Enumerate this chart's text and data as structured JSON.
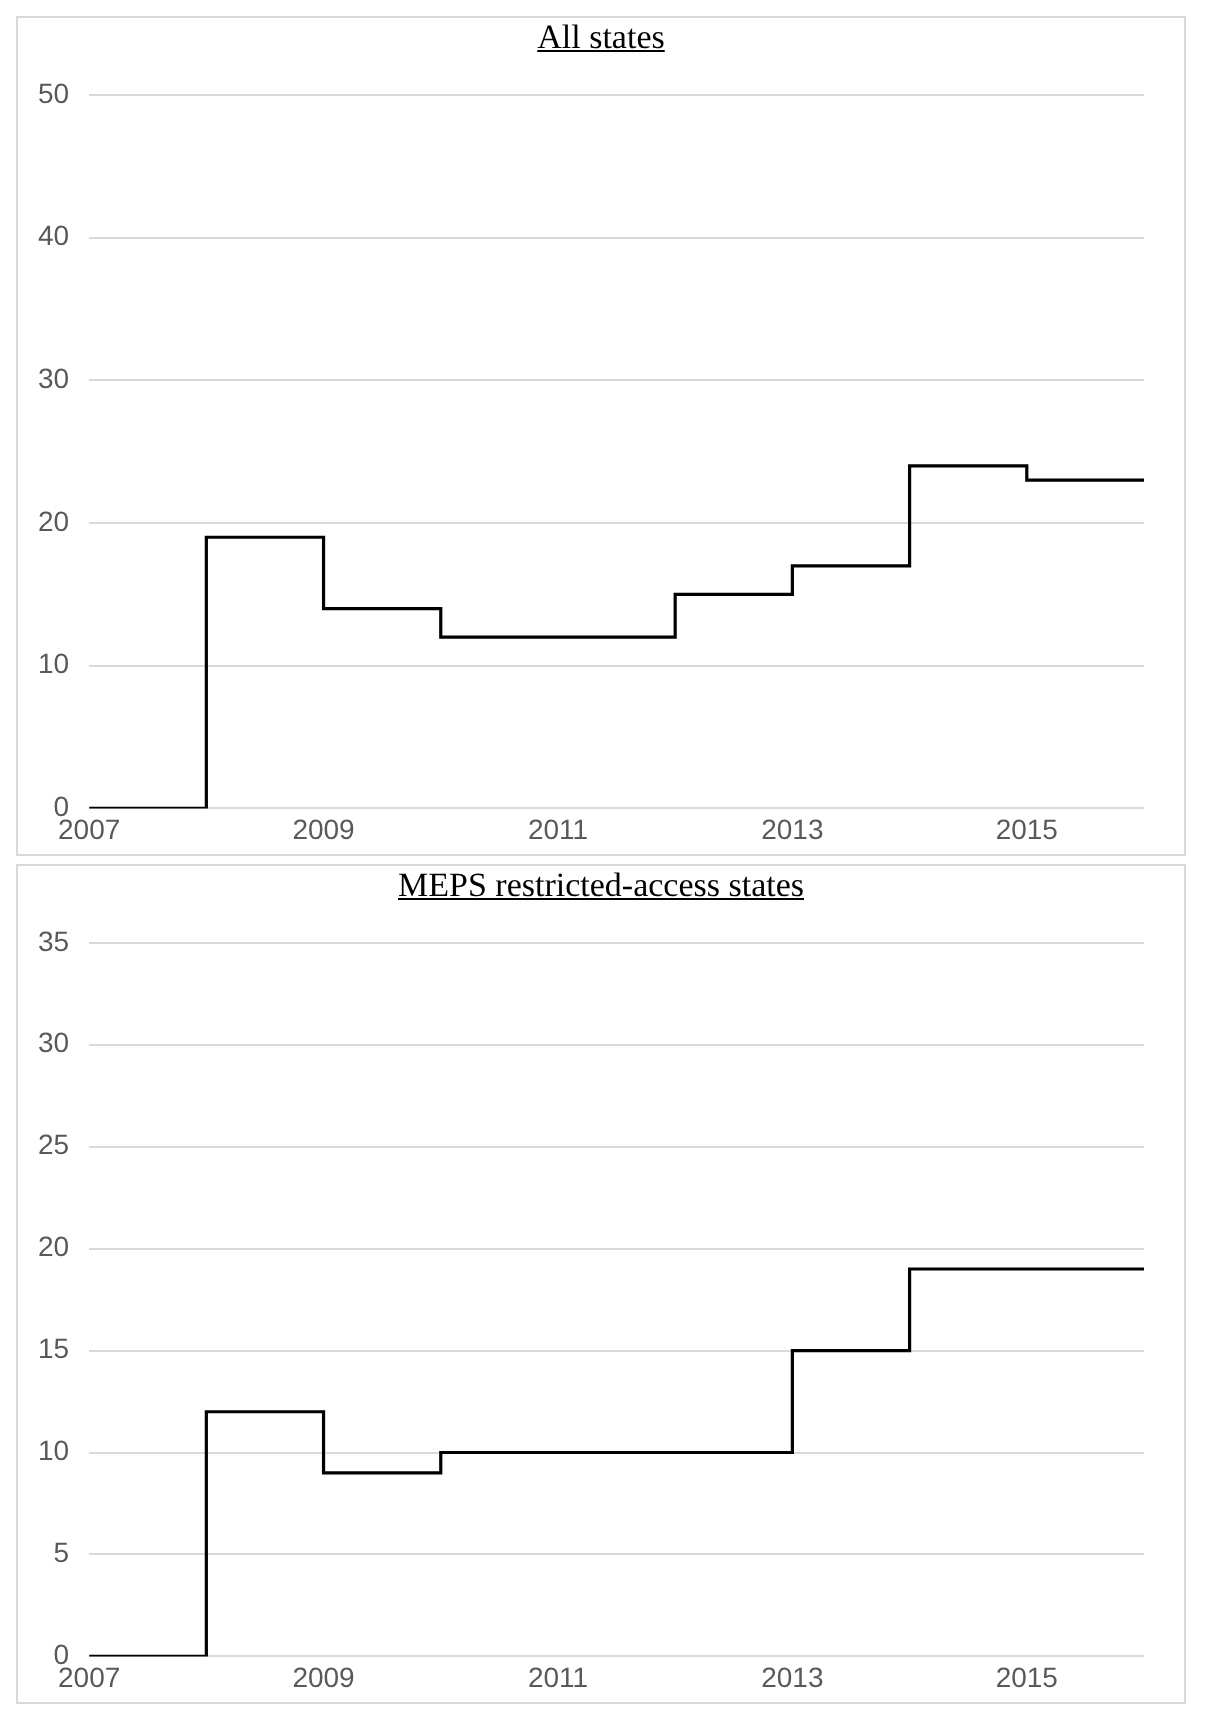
{
  "chart_data": [
    {
      "type": "step",
      "title": "All states",
      "x": [
        2007,
        2008,
        2009,
        2010,
        2011,
        2012,
        2013,
        2014,
        2015,
        2016
      ],
      "values": [
        0,
        19,
        14,
        12,
        12,
        15,
        17,
        24,
        23,
        23
      ],
      "color": "#000000",
      "xlim": [
        2007,
        2016
      ],
      "xticks": [
        2007,
        2009,
        2011,
        2013,
        2015
      ],
      "ylim": [
        0,
        50
      ],
      "yticks": [
        0,
        10,
        20,
        30,
        40,
        50
      ],
      "grid": "y",
      "legend": false
    },
    {
      "type": "step",
      "title": "MEPS restricted-access states",
      "x": [
        2007,
        2008,
        2009,
        2010,
        2011,
        2012,
        2013,
        2014,
        2015,
        2016
      ],
      "values": [
        0,
        12,
        9,
        10,
        10,
        10,
        15,
        19,
        19,
        19
      ],
      "color": "#000000",
      "xlim": [
        2007,
        2016
      ],
      "xticks": [
        2007,
        2009,
        2011,
        2013,
        2015
      ],
      "ylim": [
        0,
        35
      ],
      "yticks": [
        0,
        5,
        10,
        15,
        20,
        25,
        30,
        35
      ],
      "grid": "y",
      "legend": false
    }
  ]
}
